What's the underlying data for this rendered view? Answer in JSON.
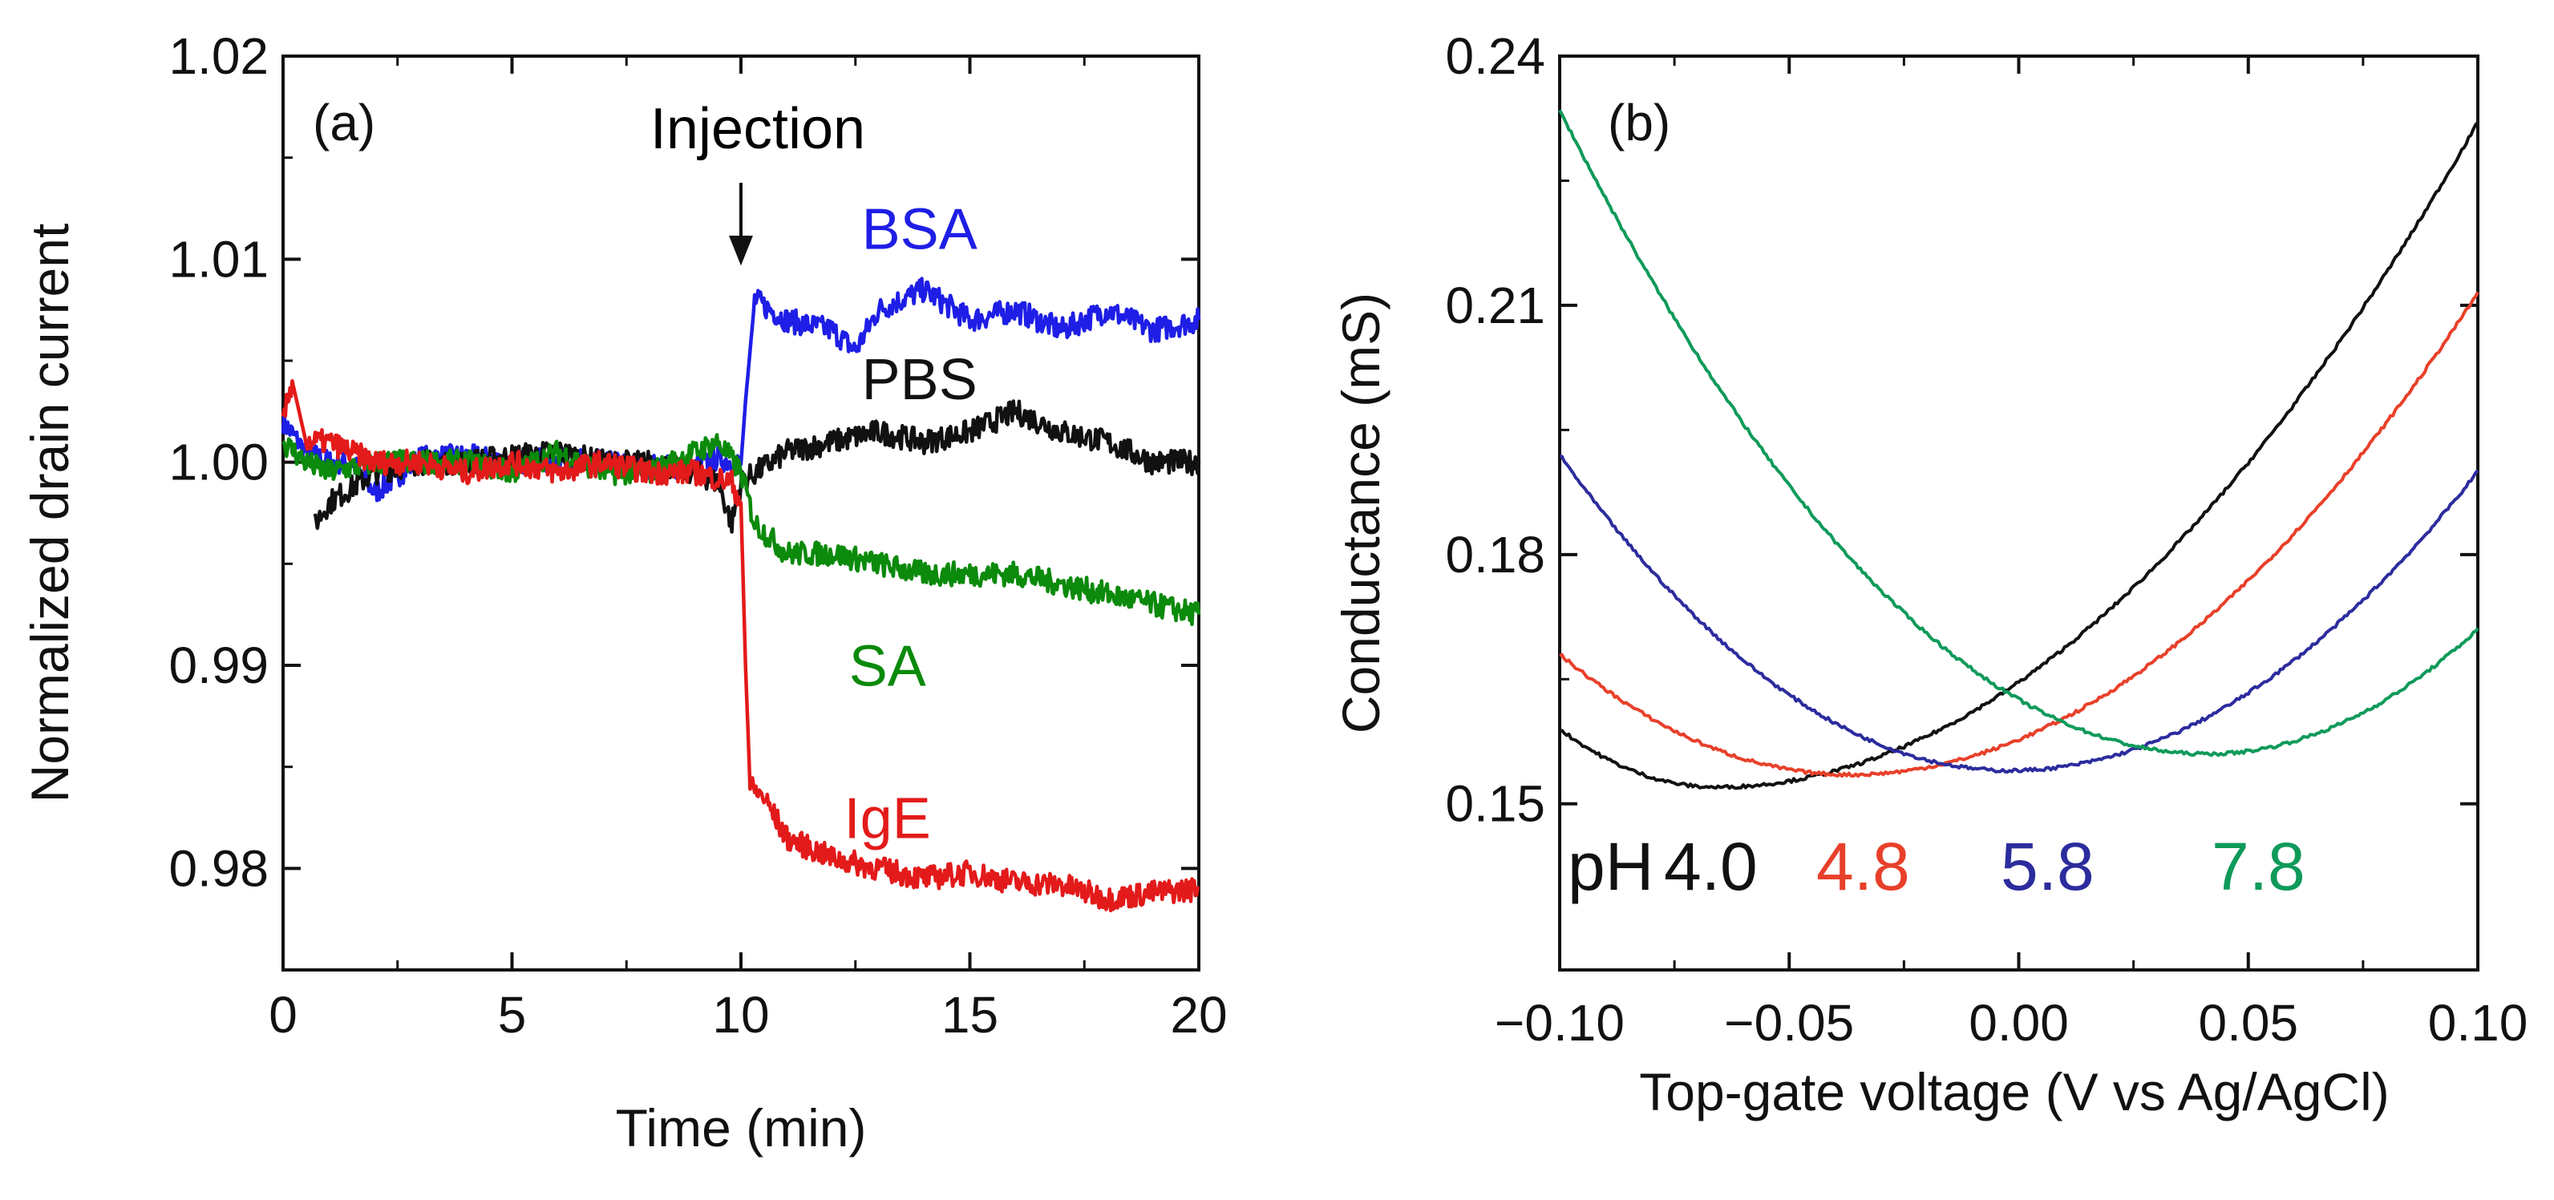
{
  "chart_data": [
    {
      "type": "line",
      "panel": "(a)",
      "xlabel": "Time (min)",
      "ylabel": "Normalized drain current",
      "xlim": [
        0,
        20
      ],
      "ylim": [
        0.975,
        1.02
      ],
      "xticks": [
        "0",
        "5",
        "10",
        "15",
        "20"
      ],
      "yticks": [
        "0.98",
        "0.99",
        "1.00",
        "1.01",
        "1.02"
      ],
      "annotation": "Injection",
      "injection_x": 10,
      "series": [
        {
          "name": "BSA",
          "color": "#1e1ee6",
          "x": [
            0,
            0.5,
            1,
            1.5,
            2,
            3,
            4,
            5,
            6,
            7,
            8,
            9,
            9.5,
            10,
            10.1,
            10.3,
            11,
            12,
            12.5,
            13,
            14,
            15,
            16,
            17,
            18,
            19,
            20
          ],
          "y": [
            1.002,
            1.0005,
            1.0,
            1.0,
            0.9985,
            1.0002,
            1.0003,
            1.0,
            1.0001,
            1.0,
            0.9998,
            0.9997,
            1.0002,
            0.9999,
            1.003,
            1.008,
            1.007,
            1.0065,
            1.0055,
            1.0075,
            1.0085,
            1.007,
            1.0075,
            1.0065,
            1.0075,
            1.0065,
            1.007
          ]
        },
        {
          "name": "PBS",
          "color": "#111111",
          "x": [
            0.7,
            1,
            2,
            3,
            4,
            5,
            6,
            7,
            8,
            9,
            9.5,
            9.8,
            10,
            11,
            12,
            13,
            14,
            15,
            16,
            17,
            18,
            19,
            20
          ],
          "y": [
            0.997,
            0.998,
            0.9995,
            1.0,
            1.0,
            1.0003,
            1.0005,
            1.0,
            1.0,
            0.9995,
            0.999,
            0.997,
            0.999,
            1.0005,
            1.001,
            1.0015,
            1.001,
            1.0015,
            1.0025,
            1.0015,
            1.001,
            1.0,
            1.0
          ]
        },
        {
          "name": "SA",
          "color": "#0b8a0b",
          "x": [
            0,
            0.5,
            1,
            2,
            3,
            4,
            5,
            6,
            7,
            8,
            9,
            9.5,
            10,
            10.3,
            11,
            12,
            13,
            14,
            15,
            16,
            17,
            18,
            19,
            20
          ],
          "y": [
            1.001,
            1.0,
            0.9995,
            1.0,
            1.0,
            1.0,
            0.9995,
            1.0005,
            0.9995,
            0.9995,
            1.0005,
            1.001,
            0.9995,
            0.997,
            0.9955,
            0.9955,
            0.995,
            0.9945,
            0.9945,
            0.9945,
            0.994,
            0.9935,
            0.993,
            0.9925
          ]
        },
        {
          "name": "IgE",
          "color": "#e31a1a",
          "x": [
            0,
            0.2,
            0.5,
            1,
            2,
            3,
            4,
            5,
            6,
            7,
            8,
            9,
            9.8,
            10,
            10.1,
            10.2,
            10.5,
            11,
            12,
            13,
            14,
            15,
            16,
            17,
            18,
            19,
            20
          ],
          "y": [
            1.002,
            1.004,
            1.001,
            1.001,
            1.0,
            1.0,
            0.9995,
            1.0,
            0.9995,
            1.0,
            0.9995,
            0.9995,
            0.999,
            0.998,
            0.99,
            0.984,
            0.9835,
            0.9815,
            0.9805,
            0.98,
            0.9795,
            0.9798,
            0.9793,
            0.9792,
            0.9785,
            0.9788,
            0.979
          ]
        }
      ],
      "labels": [
        {
          "text": "BSA",
          "color": "#1e1ee6",
          "x": 13.9,
          "y": 1.0105
        },
        {
          "text": "PBS",
          "color": "#111111",
          "x": 13.9,
          "y": 1.0031
        },
        {
          "text": "SA",
          "color": "#0b8a0b",
          "x": 13.2,
          "y": 0.989
        },
        {
          "text": "IgE",
          "color": "#e31a1a",
          "x": 13.2,
          "y": 0.9815
        }
      ]
    },
    {
      "type": "line",
      "panel": "(b)",
      "xlabel": "Top-gate voltage (V vs Ag/AgCl)",
      "ylabel": "Conductance (mS)",
      "xlim": [
        -0.1,
        0.1
      ],
      "ylim": [
        0.13,
        0.24
      ],
      "xticks": [
        "-0.10",
        "-0.05",
        "0.00",
        "0.05",
        "0.10"
      ],
      "yticks": [
        "0.15",
        "0.18",
        "0.21",
        "0.24"
      ],
      "ph_prefix": "pH",
      "series": [
        {
          "name": "4.0",
          "color": "#111111",
          "x0": -0.066,
          "ymin": 0.152,
          "left": 0.159,
          "right": 0.232
        },
        {
          "name": "4.8",
          "color": "#e8402a",
          "x0": -0.037,
          "ymin": 0.1535,
          "left": 0.168,
          "right": 0.2115
        },
        {
          "name": "5.8",
          "color": "#2c2c9e",
          "x0": -0.002,
          "ymin": 0.154,
          "left": 0.192,
          "right": 0.19
        },
        {
          "name": "7.8",
          "color": "#0f9a5a",
          "x0": 0.041,
          "ymin": 0.156,
          "left": 0.2335,
          "right": 0.171
        }
      ]
    }
  ]
}
